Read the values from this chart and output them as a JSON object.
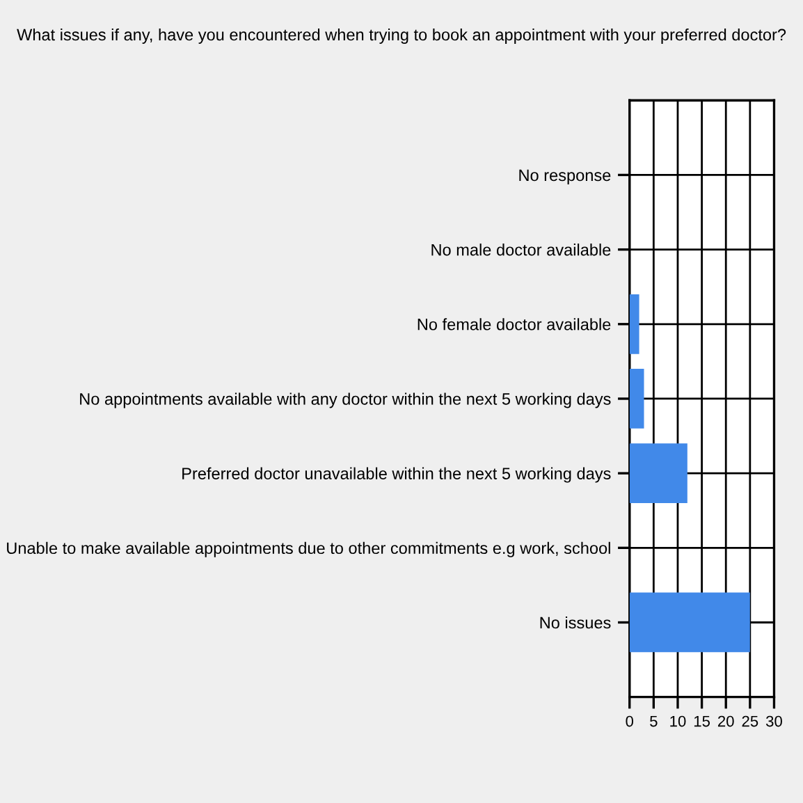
{
  "chart_data": {
    "type": "bar",
    "orientation": "horizontal",
    "title": "What issues if any, have you encountered when trying to book an appointment with your preferred doctor?",
    "categories": [
      "No response",
      "No male doctor available",
      "No female doctor available",
      "No appointments available with any doctor within the next 5 working days",
      "Preferred doctor unavailable within the next 5 working days",
      "Unable to make available appointments due to other commitments e.g work, school",
      "No issues"
    ],
    "values": [
      0,
      0,
      2,
      3,
      12,
      0,
      25
    ],
    "color": "#4189e9",
    "xlim": [
      0,
      30
    ],
    "xticks": [
      0,
      5,
      10,
      15,
      20,
      25,
      30
    ],
    "grid": true,
    "legend": false
  }
}
